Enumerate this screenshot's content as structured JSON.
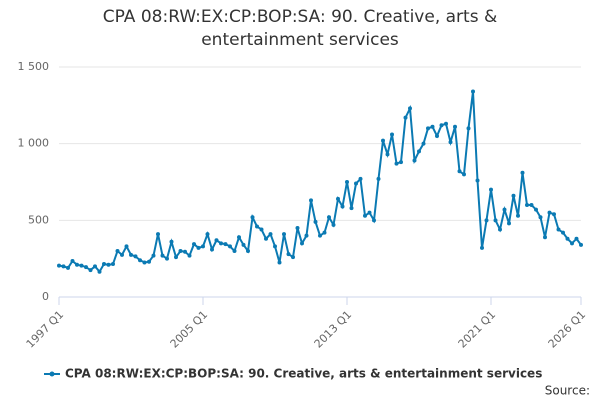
{
  "chart_data": {
    "type": "line",
    "title": "CPA 08:RW:EX:CP:BOP:SA: 90. Creative, arts & entertainment services",
    "categories": [
      "1997 Q1",
      null,
      null,
      null,
      null,
      null,
      null,
      null,
      null,
      null,
      null,
      null,
      null,
      null,
      null,
      null,
      null,
      null,
      null,
      null,
      null,
      null,
      null,
      null,
      null,
      null,
      null,
      null,
      null,
      null,
      null,
      null,
      "2005 Q1",
      null,
      null,
      null,
      null,
      null,
      null,
      null,
      null,
      null,
      null,
      null,
      null,
      null,
      null,
      null,
      null,
      null,
      null,
      null,
      null,
      null,
      null,
      null,
      null,
      null,
      null,
      null,
      null,
      null,
      null,
      null,
      "2013 Q1",
      null,
      null,
      null,
      null,
      null,
      null,
      null,
      null,
      null,
      null,
      null,
      null,
      null,
      null,
      null,
      null,
      null,
      null,
      null,
      null,
      null,
      null,
      null,
      null,
      null,
      null,
      null,
      null,
      null,
      null,
      null,
      "2021 Q1",
      null,
      null,
      null,
      null,
      null,
      null,
      null,
      null,
      null,
      null,
      null,
      null,
      null,
      null,
      null,
      null,
      null,
      null,
      null,
      "2026 Q1"
    ],
    "series": [
      {
        "name": "CPA 08:RW:EX:CP:BOP:SA: 90. Creative, arts & entertainment services",
        "color": "#0b7ab3",
        "values": [
          205,
          200,
          190,
          235,
          210,
          205,
          195,
          175,
          200,
          165,
          215,
          210,
          215,
          300,
          275,
          330,
          275,
          265,
          240,
          225,
          230,
          270,
          410,
          270,
          250,
          360,
          260,
          300,
          295,
          270,
          345,
          320,
          330,
          410,
          310,
          370,
          350,
          345,
          330,
          300,
          390,
          340,
          300,
          520,
          460,
          440,
          380,
          410,
          330,
          225,
          410,
          280,
          260,
          450,
          350,
          400,
          630,
          490,
          400,
          420,
          520,
          470,
          640,
          590,
          750,
          580,
          740,
          770,
          530,
          550,
          500,
          770,
          1020,
          930,
          1060,
          870,
          880,
          1170,
          1230,
          890,
          950,
          1000,
          1100,
          1110,
          1050,
          1120,
          1130,
          1010,
          1110,
          820,
          800,
          1100,
          1340,
          760,
          320,
          500,
          700,
          500,
          440,
          570,
          480,
          660,
          530,
          810,
          600,
          600,
          570,
          520,
          390,
          550,
          540,
          440,
          420,
          380,
          350,
          380,
          340
        ]
      }
    ],
    "ylim": [
      0,
      1500
    ],
    "yticks": [
      0,
      500,
      {
        "value": 1000,
        "label": "1 000"
      },
      {
        "value": 1500,
        "label": "1 500"
      }
    ],
    "grid": true,
    "legend": "bottom",
    "source": "Source:"
  }
}
